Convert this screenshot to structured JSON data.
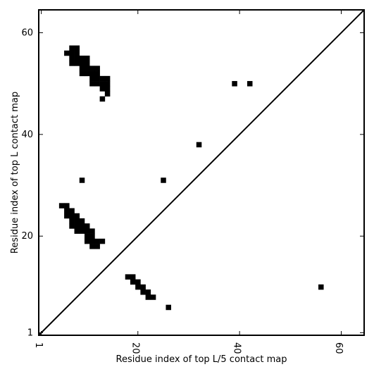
{
  "chart_data": {
    "type": "heatmap",
    "xlabel": "Residue index of top L/5 contact map",
    "ylabel": "Residue index of top L contact map",
    "xlim": [
      0.5,
      64.5
    ],
    "ylim": [
      0.5,
      64.5
    ],
    "x_ticks": [
      1,
      20,
      40,
      60
    ],
    "y_ticks": [
      1,
      20,
      40,
      60
    ],
    "diagonal": true,
    "grid": false,
    "cell_color": "#000000",
    "background_color": "#ffffff",
    "upper_left_contacts": [
      [
        6,
        56
      ],
      [
        7,
        56
      ],
      [
        8,
        56
      ],
      [
        7,
        57
      ],
      [
        8,
        57
      ],
      [
        7,
        55
      ],
      [
        8,
        55
      ],
      [
        9,
        55
      ],
      [
        10,
        55
      ],
      [
        7,
        54
      ],
      [
        8,
        54
      ],
      [
        9,
        54
      ],
      [
        10,
        54
      ],
      [
        9,
        53
      ],
      [
        10,
        53
      ],
      [
        11,
        53
      ],
      [
        12,
        53
      ],
      [
        9,
        52
      ],
      [
        10,
        52
      ],
      [
        11,
        52
      ],
      [
        12,
        52
      ],
      [
        11,
        51
      ],
      [
        12,
        51
      ],
      [
        13,
        51
      ],
      [
        14,
        51
      ],
      [
        11,
        50
      ],
      [
        12,
        50
      ],
      [
        13,
        50
      ],
      [
        14,
        50
      ],
      [
        13,
        49
      ],
      [
        14,
        49
      ],
      [
        14,
        48
      ],
      [
        13,
        47
      ],
      [
        39,
        50
      ],
      [
        42,
        50
      ],
      [
        32,
        38
      ],
      [
        9,
        31
      ],
      [
        25,
        31
      ],
      [
        5,
        26
      ],
      [
        6,
        26
      ],
      [
        6,
        25
      ],
      [
        7,
        25
      ],
      [
        6,
        24
      ],
      [
        7,
        24
      ],
      [
        8,
        24
      ],
      [
        7,
        23
      ],
      [
        8,
        23
      ],
      [
        9,
        23
      ],
      [
        7,
        22
      ],
      [
        8,
        22
      ],
      [
        9,
        22
      ],
      [
        10,
        22
      ],
      [
        8,
        21
      ],
      [
        9,
        21
      ],
      [
        10,
        21
      ],
      [
        11,
        21
      ],
      [
        10,
        20
      ],
      [
        11,
        20
      ],
      [
        10,
        19
      ],
      [
        11,
        19
      ],
      [
        12,
        19
      ],
      [
        13,
        19
      ],
      [
        11,
        18
      ],
      [
        12,
        18
      ]
    ],
    "lower_right_contacts": [
      [
        18,
        12
      ],
      [
        19,
        12
      ],
      [
        19,
        11
      ],
      [
        20,
        11
      ],
      [
        20,
        10
      ],
      [
        21,
        10
      ],
      [
        21,
        9
      ],
      [
        22,
        9
      ],
      [
        22,
        8
      ],
      [
        23,
        8
      ],
      [
        26,
        6
      ],
      [
        56,
        10
      ]
    ]
  }
}
